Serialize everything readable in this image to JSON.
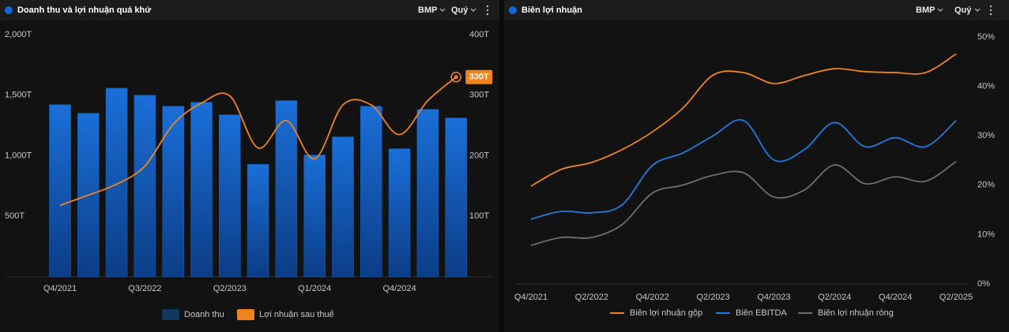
{
  "chart_data": [
    {
      "type": "bar",
      "title": "Doanh thu và lợi nhuận quá khứ",
      "ticker": "BMP",
      "period": "Quý",
      "categories": [
        "Q4/2021",
        null,
        null,
        "Q3/2022",
        null,
        null,
        "Q2/2023",
        null,
        null,
        "Q1/2024",
        null,
        null,
        "Q4/2024",
        null,
        null
      ],
      "series": [
        {
          "name": "Doanh thu",
          "type": "bar",
          "color": "#1565c0",
          "axis": "y",
          "values": [
            1422,
            1351,
            1558,
            1500,
            1409,
            1442,
            1338,
            929,
            1455,
            1006,
            1156,
            1409,
            1058,
            1383,
            1312
          ]
        },
        {
          "name": "Lợi nhuận sau thuế",
          "type": "line",
          "color": "#f0841c",
          "axis": "y2",
          "values": [
            118,
            135,
            153,
            183,
            252,
            287,
            299,
            213,
            258,
            195,
            284,
            284,
            235,
            291,
            330
          ],
          "value_labels": [
            null,
            null,
            null,
            null,
            null,
            null,
            null,
            null,
            null,
            null,
            null,
            null,
            null,
            null,
            "330T"
          ]
        }
      ],
      "ylim": [
        0,
        2000
      ],
      "yticks": [
        {
          "value": 500,
          "label": "500T"
        },
        {
          "value": 1000,
          "label": "1,000T"
        },
        {
          "value": 1500,
          "label": "1,500T"
        },
        {
          "value": 2000,
          "label": "2,000T"
        }
      ],
      "y2lim": [
        0,
        400
      ],
      "y2ticks": [
        {
          "value": 100,
          "label": "100T"
        },
        {
          "value": 200,
          "label": "200T"
        },
        {
          "value": 300,
          "label": "300T"
        },
        {
          "value": 400,
          "label": "400T"
        }
      ],
      "grid": false,
      "legend": "bottom"
    },
    {
      "type": "line",
      "title": "Biên lợi nhuận",
      "ticker": "BMP",
      "period": "Quý",
      "categories": [
        "Q4/2021",
        null,
        "Q2/2022",
        null,
        "Q4/2022",
        null,
        "Q2/2023",
        null,
        "Q4/2023",
        null,
        "Q2/2024",
        null,
        "Q4/2024",
        null,
        "Q2/2025"
      ],
      "series": [
        {
          "name": "Biên lợi nhuận gộp",
          "color": "#f0841c",
          "values": [
            19.8,
            23.2,
            24.6,
            27.2,
            30.8,
            35.6,
            42.3,
            42.8,
            40.6,
            42.2,
            43.6,
            43.0,
            42.8,
            42.8,
            46.6
          ]
        },
        {
          "name": "Biên EBITDA",
          "color": "#1e7be0",
          "values": [
            13.1,
            14.7,
            14.4,
            16.0,
            24.0,
            26.5,
            30.0,
            33.1,
            25.1,
            27.2,
            32.7,
            27.8,
            29.6,
            27.8,
            33.1
          ]
        },
        {
          "name": "Biên lợi nhuận ròng",
          "color": "#6e6e6e",
          "values": [
            7.8,
            9.4,
            9.4,
            12.0,
            18.4,
            20.0,
            22.0,
            22.5,
            17.6,
            19.0,
            24.1,
            20.3,
            21.7,
            20.8,
            24.8
          ]
        }
      ],
      "ylim": [
        0,
        50
      ],
      "yticks": [
        {
          "value": 0,
          "label": "0%"
        },
        {
          "value": 10,
          "label": "10%"
        },
        {
          "value": 20,
          "label": "20%"
        },
        {
          "value": 30,
          "label": "30%"
        },
        {
          "value": 40,
          "label": "40%"
        },
        {
          "value": 50,
          "label": "50%"
        }
      ],
      "grid": false,
      "legend": "bottom"
    }
  ]
}
